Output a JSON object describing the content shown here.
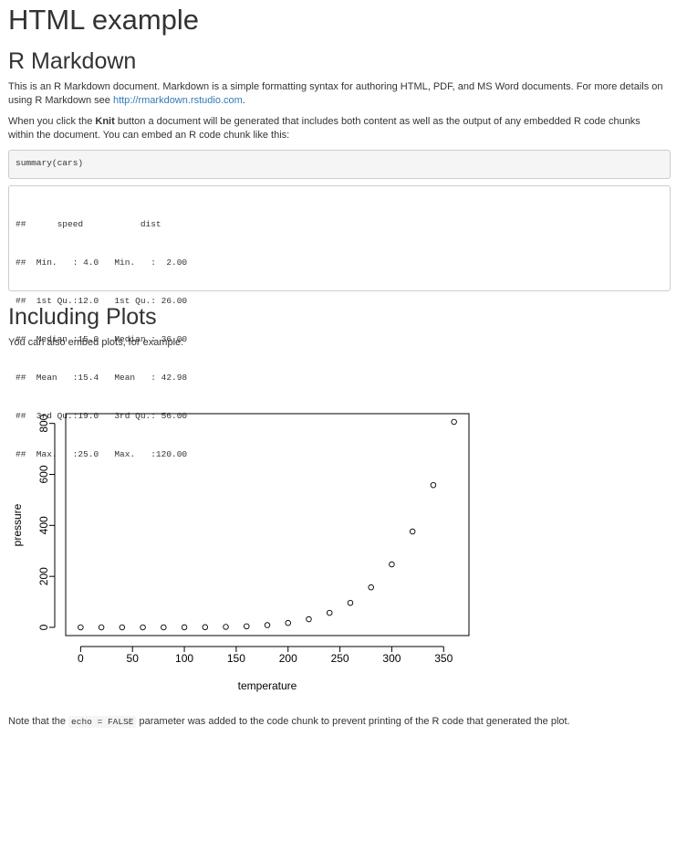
{
  "title": "HTML example",
  "section1": {
    "heading": "R Markdown",
    "para1_text": "This is an R Markdown document. Markdown is a simple formatting syntax for authoring HTML, PDF, and MS Word documents. For more details on using R Markdown see ",
    "para1_link": "http://rmarkdown.rstudio.com",
    "para1_end": ".",
    "para2_pre": "When you click the ",
    "para2_bold": "Knit",
    "para2_post": " button a document will be generated that includes both content as well as the output of any embedded R code chunks within the document. You can embed an R code chunk like this:",
    "code": "summary(cars)",
    "output_lines": [
      "##      speed           dist       ",
      "##  Min.   : 4.0   Min.   :  2.00  ",
      "##  1st Qu.:12.0   1st Qu.: 26.00  ",
      "##  Median :15.0   Median : 36.00  ",
      "##  Mean   :15.4   Mean   : 42.98  ",
      "##  3rd Qu.:19.0   3rd Qu.: 56.00  ",
      "##  Max.   :25.0   Max.   :120.00  "
    ]
  },
  "section2": {
    "heading": "Including Plots",
    "intro": "You can also embed plots, for example:",
    "note_pre": "Note that the ",
    "note_code": "echo = FALSE",
    "note_post": " parameter was added to the code chunk to prevent printing of the R code that generated the plot."
  },
  "chart_data": {
    "type": "scatter",
    "xlabel": "temperature",
    "ylabel": "pressure",
    "x": [
      0,
      20,
      40,
      60,
      80,
      100,
      120,
      140,
      160,
      180,
      200,
      220,
      240,
      260,
      280,
      300,
      320,
      340,
      360
    ],
    "y": [
      0.0002,
      0.0012,
      0.006,
      0.03,
      0.09,
      0.27,
      0.75,
      1.85,
      4.2,
      8.8,
      17.3,
      32.1,
      57.0,
      96.0,
      157.0,
      247.0,
      376.0,
      558.0,
      806.0
    ],
    "xticks": [
      0,
      50,
      100,
      150,
      200,
      250,
      300,
      350
    ],
    "yticks": [
      0,
      200,
      400,
      600,
      800
    ],
    "xlim": [
      -14.4,
      374.4
    ],
    "ylim": [
      -32.2,
      838.2
    ],
    "marker": "open-circle",
    "grid": false
  }
}
